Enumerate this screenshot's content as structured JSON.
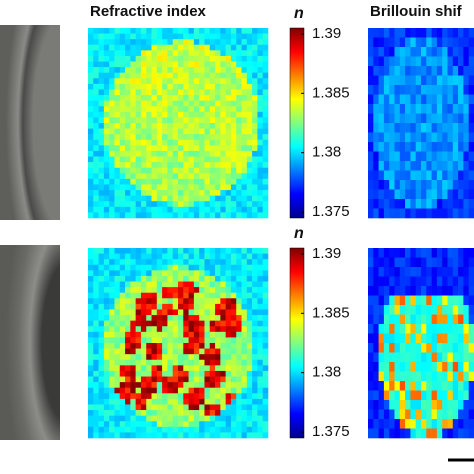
{
  "titles": {
    "refractive": "Refractive index",
    "brillouin": "Brillouin shif"
  },
  "colorbars": [
    {
      "label": "n",
      "lim": [
        1.3745,
        1.3905
      ],
      "ticks": [
        1.39,
        1.385,
        1.38,
        1.375
      ]
    },
    {
      "label": "n",
      "lim": [
        1.3745,
        1.3905
      ],
      "ticks": [
        1.39,
        1.385,
        1.38,
        1.375
      ]
    }
  ]
}
